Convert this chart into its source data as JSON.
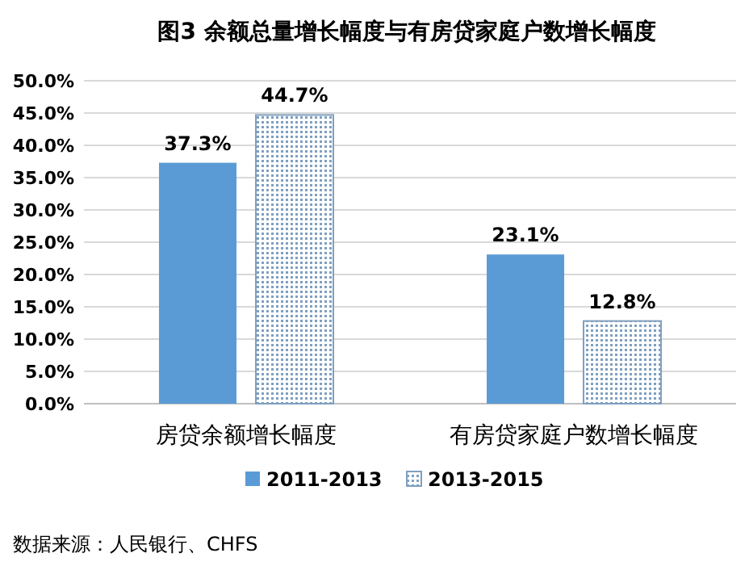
{
  "chart_data": {
    "type": "bar",
    "title": "图3  余额总量增长幅度与有房贷家庭户数增长幅度",
    "categories": [
      "房贷余额增长幅度",
      "有房贷家庭户数增长幅度"
    ],
    "series": [
      {
        "name": "2011-2013",
        "color": "#5b9bd5",
        "values": [
          37.3,
          23.1
        ],
        "value_labels": [
          "37.3%",
          "23.1%"
        ]
      },
      {
        "name": "2013-2015",
        "color": "#7f9fbf",
        "values": [
          44.7,
          12.8
        ],
        "value_labels": [
          "44.7%",
          "12.8%"
        ]
      }
    ],
    "ylim": [
      0,
      50
    ],
    "yticks": [
      {
        "value": 0,
        "label": "0.0%"
      },
      {
        "value": 5,
        "label": "5.0%"
      },
      {
        "value": 10,
        "label": "10.0%"
      },
      {
        "value": 15,
        "label": "15.0%"
      },
      {
        "value": 20,
        "label": "20.0%"
      },
      {
        "value": 25,
        "label": "25.0%"
      },
      {
        "value": 30,
        "label": "30.0%"
      },
      {
        "value": 35,
        "label": "35.0%"
      },
      {
        "value": 40,
        "label": "40.0%"
      },
      {
        "value": 45,
        "label": "45.0%"
      },
      {
        "value": 50,
        "label": "50.0%"
      }
    ],
    "grid": "y",
    "legend": "bottom",
    "annotations": [
      "数据来源：人民银行、CHFS"
    ]
  }
}
